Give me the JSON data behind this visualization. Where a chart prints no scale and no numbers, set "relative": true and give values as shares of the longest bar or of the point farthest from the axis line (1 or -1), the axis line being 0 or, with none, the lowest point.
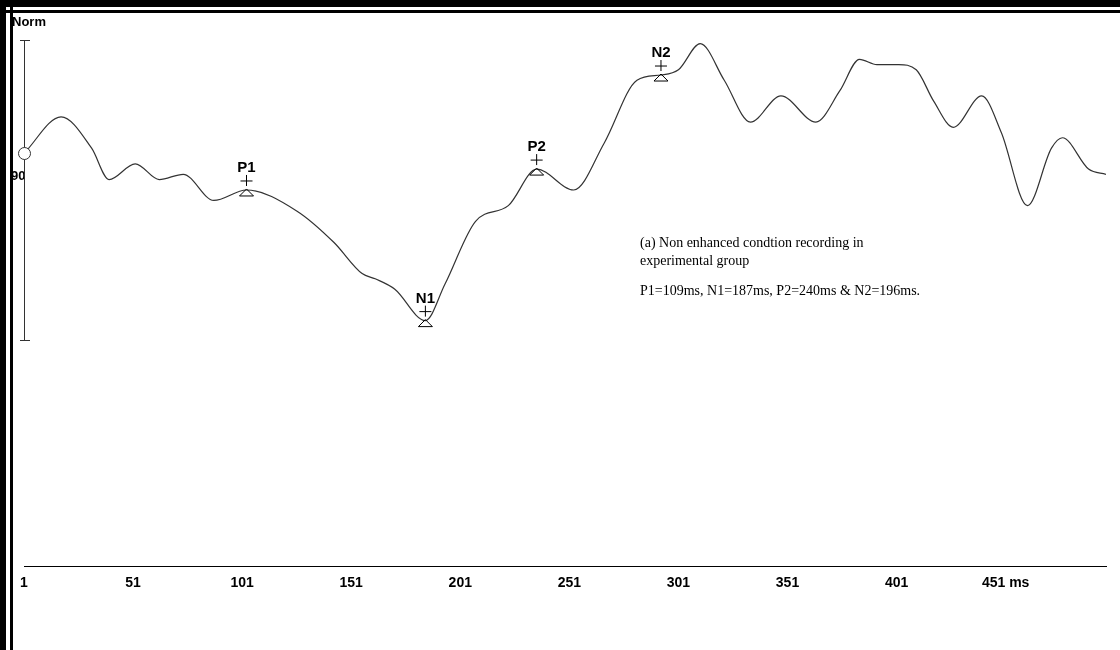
{
  "chart_data": {
    "type": "line",
    "relative": true,
    "xlim": [
      1,
      497
    ],
    "xticks": [
      1,
      51,
      101,
      151,
      201,
      251,
      301,
      351,
      401,
      {
        "value": 451,
        "label": "451 ms"
      }
    ],
    "grid": false,
    "legend": false,
    "marker": "none",
    "line_style": "solid",
    "series": [
      {
        "color": "#333333",
        "x": [
          1,
          18,
          32,
          40,
          52,
          63,
          74,
          88,
          103,
          126,
          143,
          156,
          162,
          171,
          185,
          194,
          208,
          223,
          236,
          253,
          267,
          282,
          293,
          301,
          311,
          322,
          334,
          348,
          364,
          375,
          384,
          392,
          402,
          410,
          418,
          427,
          440,
          449,
          461,
          472,
          477,
          489,
          497
        ],
        "values": [
          0.79,
          0.86,
          0.8,
          0.74,
          0.77,
          0.74,
          0.75,
          0.7,
          0.72,
          0.68,
          0.62,
          0.56,
          0.55,
          0.53,
          0.47,
          0.54,
          0.66,
          0.69,
          0.76,
          0.72,
          0.81,
          0.93,
          0.94,
          0.95,
          1.0,
          0.93,
          0.85,
          0.9,
          0.85,
          0.91,
          0.97,
          0.96,
          0.96,
          0.95,
          0.89,
          0.84,
          0.9,
          0.83,
          0.69,
          0.8,
          0.82,
          0.76,
          0.75
        ]
      }
    ],
    "annotations": [
      "Norm",
      "90",
      {
        "text": "P1",
        "x": 103,
        "y": 0.72
      },
      {
        "text": "N1",
        "x": 185,
        "y": 0.47
      },
      {
        "text": "P2",
        "x": 236,
        "y": 0.76
      },
      {
        "text": "N2",
        "x": 293,
        "y": 0.94
      },
      "(a) Non enhanced condtion recording in experimental group",
      "P1=109ms, N1=187ms, P2=240ms & N2=196ms."
    ]
  }
}
